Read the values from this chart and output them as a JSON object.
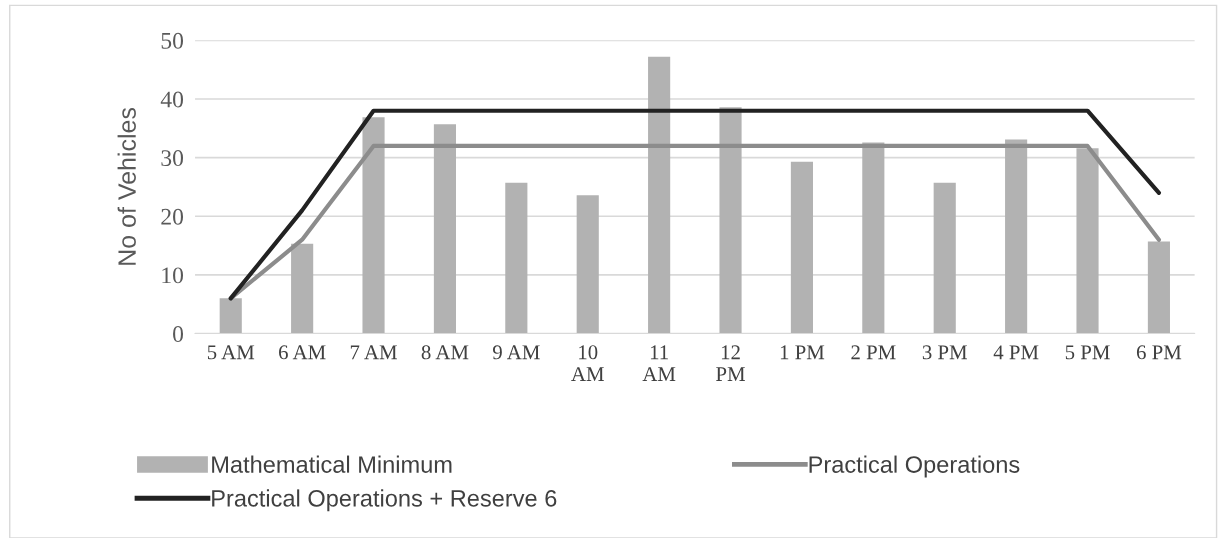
{
  "chart_data": {
    "type": "bar",
    "ylabel": "No of Vehicles",
    "categories": [
      "5 AM",
      "6 AM",
      "7 AM",
      "8 AM",
      "9 AM",
      "10 AM",
      "11 AM",
      "12 PM",
      "1 PM",
      "2 PM",
      "3 PM",
      "4 PM",
      "5 PM",
      "6 PM"
    ],
    "series": [
      {
        "name": "Mathematical Minimum",
        "color": "#b2b2b2",
        "values": [
          6,
          15.3,
          36.9,
          35.7,
          25.7,
          23.6,
          47.2,
          38.6,
          29.3,
          32.6,
          25.7,
          33.1,
          31.6,
          15.7
        ]
      },
      {
        "name": "Practical Operations",
        "type": "line",
        "color": "#8c8c8c",
        "values": [
          6,
          16,
          32,
          32,
          32,
          32,
          32,
          32,
          32,
          32,
          32,
          32,
          32,
          16
        ]
      },
      {
        "name": "Practical Operations + Reserve 6",
        "type": "line",
        "color": "#222222",
        "values": [
          6,
          21,
          38,
          38,
          38,
          38,
          38,
          38,
          38,
          38,
          38,
          38,
          38,
          24
        ]
      }
    ],
    "ylim": [
      0,
      50
    ],
    "yticks": [
      0,
      10,
      20,
      30,
      40,
      50
    ],
    "grid": "y",
    "legend": "bottom",
    "marker": "none",
    "line_style": "solid"
  }
}
